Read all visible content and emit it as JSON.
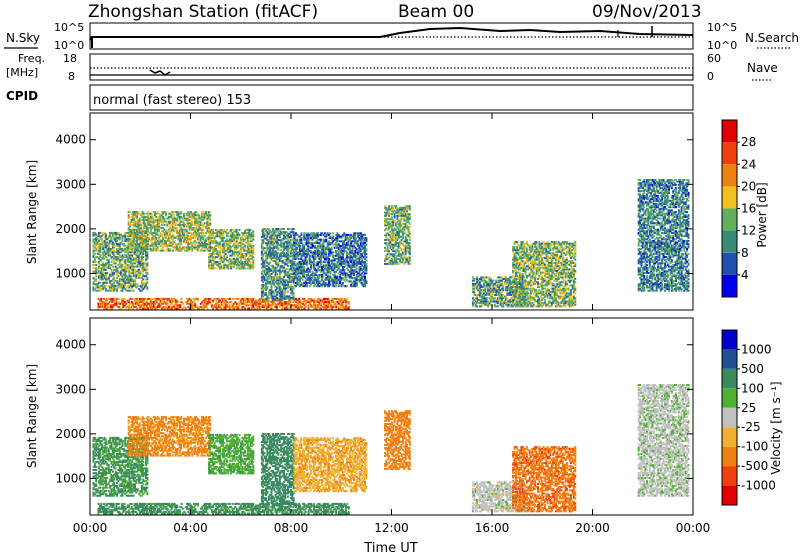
{
  "header": {
    "station": "Zhongshan Station (fitACF)",
    "beam": "Beam 00",
    "date": "09/Nov/2013"
  },
  "noise_panel": {
    "left_label": "N.Sky",
    "right_label": "N.Search",
    "left_ticks": [
      "10^5",
      "10^0"
    ],
    "right_ticks": [
      "10^5",
      "10^0"
    ]
  },
  "freq_panel": {
    "left_label_line1": "Freq.",
    "left_label_line2": "[MHz]",
    "right_label": "Nave",
    "left_ticks": [
      "18",
      "8"
    ],
    "right_ticks": [
      "60",
      "0"
    ]
  },
  "cpid_panel": {
    "label": "CPID",
    "value": "normal (fast stereo) 153"
  },
  "colors": {
    "power": [
      "#0000ee",
      "#2050b0",
      "#3a8a78",
      "#60b060",
      "#f0c020",
      "#f08010",
      "#f04010",
      "#e00000"
    ],
    "velocity": [
      "#e00000",
      "#f04010",
      "#f08010",
      "#f0b030",
      "#c0c0c0",
      "#50b030",
      "#3a8a60",
      "#205090",
      "#0000cc"
    ]
  },
  "chart_data": [
    {
      "type": "heatmap",
      "title": "Power",
      "ylabel": "Slant Range [km]",
      "ylim": [
        180,
        4600
      ],
      "yticks": [
        1000,
        2000,
        3000,
        4000
      ],
      "xlim": [
        0,
        24
      ],
      "xticks": [
        "00:00",
        "04:00",
        "08:00",
        "12:00",
        "16:00",
        "20:00",
        "00:00"
      ],
      "colorbar": {
        "label": "Power [dB]",
        "ticks": [
          "4",
          "8",
          "12",
          "16",
          "20",
          "24",
          "28"
        ],
        "range": [
          0,
          30
        ]
      },
      "regions": [
        {
          "t0": 0.3,
          "t1": 10.3,
          "r0": 200,
          "r1": 420,
          "value": 22
        },
        {
          "t0": 0.1,
          "t1": 2.3,
          "r0": 600,
          "r1": 1900,
          "value": 12
        },
        {
          "t0": 1.5,
          "t1": 4.8,
          "r0": 1500,
          "r1": 2400,
          "value": 14
        },
        {
          "t0": 4.7,
          "t1": 6.5,
          "r0": 1100,
          "r1": 2000,
          "value": 13
        },
        {
          "t0": 6.8,
          "t1": 8.1,
          "r0": 400,
          "r1": 2000,
          "value": 10
        },
        {
          "t0": 8.1,
          "t1": 11.0,
          "r0": 700,
          "r1": 1900,
          "value": 8
        },
        {
          "t0": 11.7,
          "t1": 12.7,
          "r0": 1200,
          "r1": 2500,
          "value": 12
        },
        {
          "t0": 15.2,
          "t1": 17.3,
          "r0": 250,
          "r1": 900,
          "value": 11
        },
        {
          "t0": 16.8,
          "t1": 19.3,
          "r0": 250,
          "r1": 1700,
          "value": 13
        },
        {
          "t0": 21.8,
          "t1": 23.8,
          "r0": 600,
          "r1": 3100,
          "value": 9
        }
      ]
    },
    {
      "type": "heatmap",
      "title": "Velocity",
      "ylabel": "Slant Range [km]",
      "ylim": [
        180,
        4600
      ],
      "yticks": [
        1000,
        2000,
        3000,
        4000
      ],
      "xlim": [
        0,
        24
      ],
      "xlabel": "Time UT",
      "xticks": [
        "00:00",
        "04:00",
        "08:00",
        "12:00",
        "16:00",
        "20:00",
        "00:00"
      ],
      "colorbar": {
        "label": "Velocity [m s⁻¹]",
        "ticks": [
          "1000",
          "500",
          "100",
          "25",
          "-25",
          "-100",
          "-500",
          "-1000"
        ]
      },
      "regions": [
        {
          "t0": 0.3,
          "t1": 10.3,
          "r0": 200,
          "r1": 420,
          "value": 150
        },
        {
          "t0": 0.1,
          "t1": 2.3,
          "r0": 600,
          "r1": 1900,
          "value": 120
        },
        {
          "t0": 1.5,
          "t1": 4.8,
          "r0": 1500,
          "r1": 2400,
          "value": -150
        },
        {
          "t0": 4.7,
          "t1": 6.5,
          "r0": 1100,
          "r1": 2000,
          "value": 80
        },
        {
          "t0": 6.8,
          "t1": 8.1,
          "r0": 400,
          "r1": 2000,
          "value": 200
        },
        {
          "t0": 8.1,
          "t1": 11.0,
          "r0": 700,
          "r1": 1900,
          "value": -80
        },
        {
          "t0": 11.7,
          "t1": 12.7,
          "r0": 1200,
          "r1": 2500,
          "value": -200
        },
        {
          "t0": 15.2,
          "t1": 17.3,
          "r0": 250,
          "r1": 900,
          "value": 0
        },
        {
          "t0": 16.8,
          "t1": 19.3,
          "r0": 250,
          "r1": 1700,
          "value": -400
        },
        {
          "t0": 21.8,
          "t1": 23.8,
          "r0": 600,
          "r1": 3100,
          "value": 10
        }
      ]
    }
  ]
}
